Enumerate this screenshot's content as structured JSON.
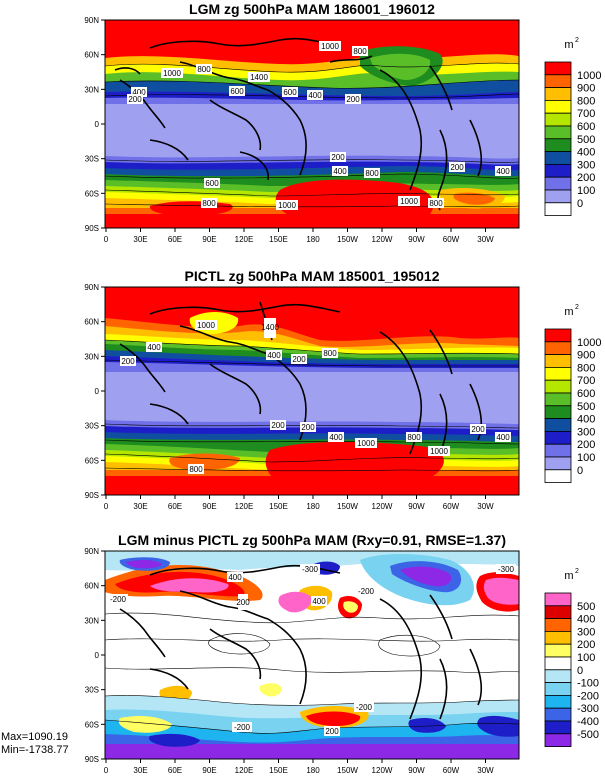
{
  "chart_data": [
    {
      "type": "heatmap",
      "title": "LGM zg 500hPa MAM 186001_196012",
      "colorbar_unit": "m",
      "colorbar_unit_sup": "2",
      "levels": [
        0,
        100,
        200,
        300,
        400,
        500,
        600,
        700,
        800,
        900,
        1000
      ],
      "colors": [
        "#ffffff",
        "#a0a0f0",
        "#7070e8",
        "#1e1ec8",
        "#104ea0",
        "#1e8c1e",
        "#5abe28",
        "#b4e600",
        "#ffff00",
        "#ffbe00",
        "#ff6400",
        "#ff0000"
      ],
      "x_ticks": [
        "0",
        "30E",
        "60E",
        "90E",
        "120E",
        "150E",
        "180",
        "150W",
        "120W",
        "90W",
        "60W",
        "30W"
      ],
      "y_ticks": [
        "90N",
        "60N",
        "30N",
        "0",
        "30S",
        "60S",
        "90S"
      ],
      "contour_labels": [
        "1000",
        "800",
        "1000",
        "800",
        "1400",
        "600",
        "400",
        "200",
        "400",
        "600",
        "200",
        "200",
        "400",
        "600",
        "800",
        "1000",
        "200",
        "400",
        "800",
        "1000",
        "800"
      ]
    },
    {
      "type": "heatmap",
      "title": "PICTL zg 500hPa MAM 185001_195012",
      "colorbar_unit": "m",
      "colorbar_unit_sup": "2",
      "levels": [
        0,
        100,
        200,
        300,
        400,
        500,
        600,
        700,
        800,
        900,
        1000
      ],
      "colors": [
        "#ffffff",
        "#a0a0f0",
        "#7070e8",
        "#1e1ec8",
        "#104ea0",
        "#1e8c1e",
        "#5abe28",
        "#b4e600",
        "#ffff00",
        "#ffbe00",
        "#ff6400",
        "#ff0000"
      ],
      "x_ticks": [
        "0",
        "30E",
        "60E",
        "90E",
        "120E",
        "150E",
        "180",
        "150W",
        "120W",
        "90W",
        "60W",
        "30W"
      ],
      "y_ticks": [
        "90N",
        "60N",
        "30N",
        "0",
        "30S",
        "60S",
        "90S"
      ],
      "contour_labels": [
        "1000",
        "1400",
        "400",
        "200",
        "800",
        "200",
        "400",
        "200",
        "400",
        "1000",
        "800",
        "1000",
        "200",
        "400",
        "800",
        "200"
      ]
    },
    {
      "type": "heatmap",
      "title": "LGM minus PICTL zg 500hPa MAM (Rxy=0.91, RMSE=1.37)",
      "colorbar_unit": "m",
      "colorbar_unit_sup": "2",
      "levels": [
        -500,
        -400,
        -300,
        -200,
        -100,
        0,
        100,
        200,
        300,
        400,
        500
      ],
      "colors": [
        "#8c28e6",
        "#1e1ec8",
        "#3c64e6",
        "#1eb4f0",
        "#78d2f0",
        "#b4e6f5",
        "#ffffff",
        "#ffff64",
        "#ffbe00",
        "#ff6400",
        "#dc0000",
        "#ff64c8"
      ],
      "x_ticks": [
        "0",
        "30E",
        "60E",
        "90E",
        "120E",
        "150E",
        "180",
        "150W",
        "120W",
        "90W",
        "60W",
        "30W"
      ],
      "y_ticks": [
        "90N",
        "60N",
        "30N",
        "0",
        "30S",
        "60S",
        "90S"
      ],
      "contour_labels": [
        "400",
        "200",
        "400",
        "-300",
        "-200",
        "-200",
        "-200",
        "-200",
        "200",
        "-300"
      ],
      "stats": {
        "max": "Max=1090.19",
        "min": "Min=-1738.77"
      }
    }
  ]
}
